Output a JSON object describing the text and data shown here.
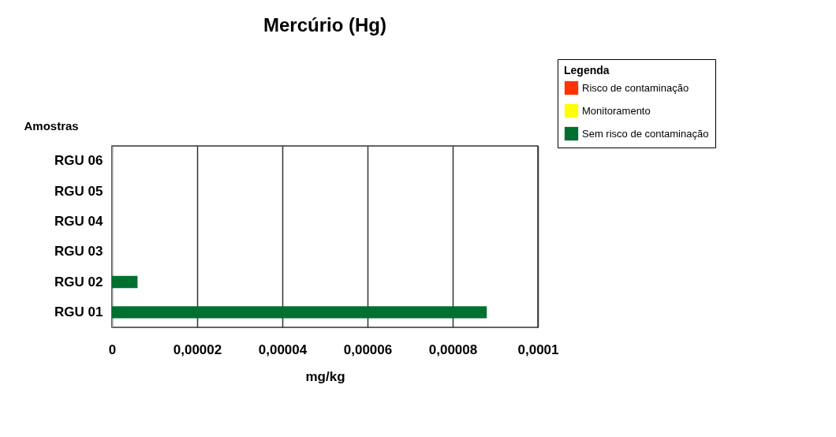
{
  "chart_data": {
    "type": "bar",
    "orientation": "horizontal",
    "title": "Mercúrio (Hg)",
    "xlabel": "mg/kg",
    "ylabel": "Amostras",
    "legend_title": "Legenda",
    "categories": [
      "RGU 06",
      "RGU 05",
      "RGU 04",
      "RGU 03",
      "RGU 02",
      "RGU 01"
    ],
    "series": [
      {
        "name": "Risco de contaminação",
        "color": "#ff3300",
        "values": [
          null,
          null,
          null,
          null,
          null,
          null
        ]
      },
      {
        "name": "Monitoramento",
        "color": "#ffff00",
        "values": [
          null,
          null,
          null,
          null,
          null,
          null
        ]
      },
      {
        "name": "Sem risco de contaminação",
        "color": "#007030",
        "values": [
          0,
          0,
          0,
          0,
          6e-06,
          8.8e-05
        ]
      }
    ],
    "xlim": [
      0,
      0.0001
    ],
    "xticks": [
      0,
      {
        "value": 2e-05,
        "label": "0,00002"
      },
      {
        "value": 4e-05,
        "label": "0,00004"
      },
      {
        "value": 6e-05,
        "label": "0,00006"
      },
      {
        "value": 8e-05,
        "label": "0,00008"
      },
      {
        "value": 0.0001,
        "label": "0,0001"
      }
    ],
    "grid": "x",
    "legend": "top right"
  }
}
